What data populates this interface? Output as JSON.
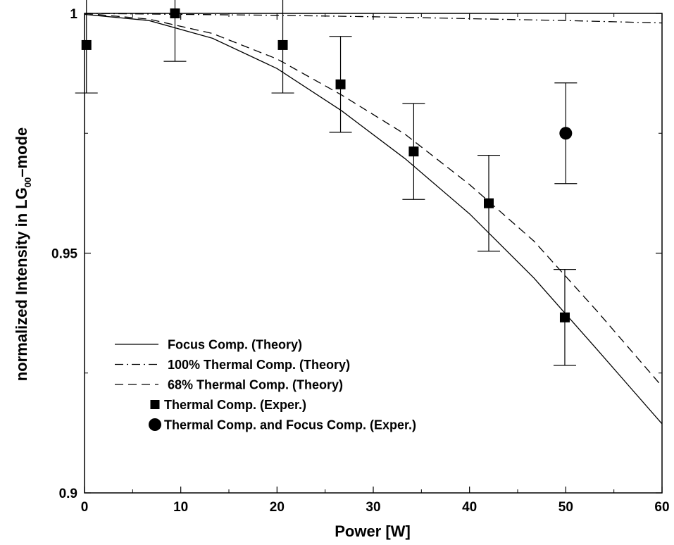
{
  "chart_data": {
    "type": "line",
    "xlabel": "Power [W]",
    "ylabel": {
      "prefix": "normalized Intensity in LG",
      "subscript": "00",
      "suffix": "–mode"
    },
    "xlim": [
      0,
      60
    ],
    "ylim": [
      0.9,
      1.0
    ],
    "x_ticks": [
      0,
      10,
      20,
      30,
      40,
      50,
      60
    ],
    "y_ticks": [
      0.9,
      0.95,
      1.0
    ],
    "x_tick_labels": [
      "0",
      "10",
      "20",
      "30",
      "40",
      "50",
      "60"
    ],
    "y_tick_labels": [
      "0.9",
      "0.95",
      "1"
    ],
    "grid": false,
    "legend_position": "lower-left",
    "series": [
      {
        "name": "Focus Comp.  (Theory)",
        "style": "solid",
        "color": "#000000",
        "x": [
          0,
          6.7,
          13.3,
          20,
          26.7,
          33.3,
          40,
          46.7,
          53.3,
          60
        ],
        "y": [
          0.9998,
          0.9985,
          0.9948,
          0.9885,
          0.9797,
          0.9697,
          0.9582,
          0.9448,
          0.9298,
          0.9144
        ]
      },
      {
        "name": "100% Thermal Comp.  (Theory)",
        "style": "dashdot",
        "color": "#000000",
        "x": [
          0,
          10,
          20,
          30,
          40,
          50,
          60
        ],
        "y": [
          1.0,
          0.9998,
          0.9996,
          0.9993,
          0.9989,
          0.9985,
          0.998
        ]
      },
      {
        "name": "68% Thermal Comp.  (Theory)",
        "style": "dashed",
        "color": "#000000",
        "x": [
          0,
          6.7,
          13.3,
          20,
          26.7,
          33.3,
          40,
          46.7,
          53.3,
          60
        ],
        "y": [
          1.0,
          0.9988,
          0.9958,
          0.9905,
          0.983,
          0.9748,
          0.9643,
          0.9525,
          0.9378,
          0.9222
        ]
      },
      {
        "name": "Thermal Comp.  (Exper.)",
        "style": "markers",
        "marker": "square",
        "color": "#000000",
        "x": [
          0.2,
          9.4,
          20.6,
          26.6,
          34.2,
          42,
          49.9
        ],
        "y": [
          0.9934,
          1.0,
          0.9934,
          0.9852,
          0.9712,
          0.9604,
          0.9366
        ],
        "err": [
          0.01,
          0.01,
          0.01,
          0.01,
          0.01,
          0.01,
          0.01
        ]
      },
      {
        "name": "Thermal Comp. and Focus Comp. (Exper.)",
        "style": "markers",
        "marker": "circle",
        "color": "#000000",
        "x": [
          50
        ],
        "y": [
          0.975
        ],
        "err": [
          0.0105
        ]
      }
    ]
  }
}
